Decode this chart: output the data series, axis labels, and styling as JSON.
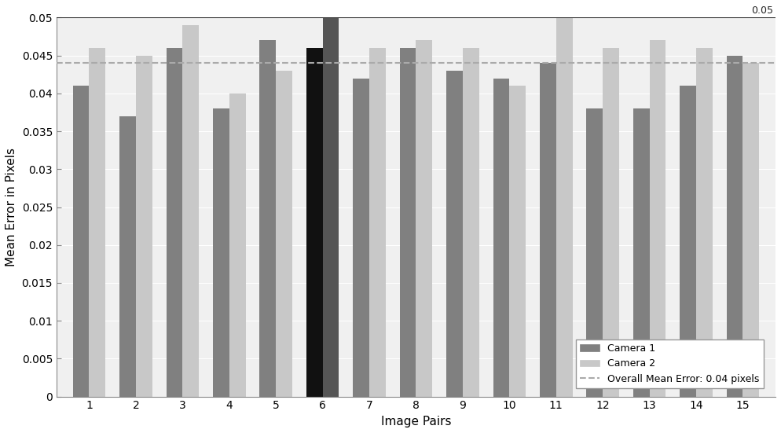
{
  "camera1": [
    0.041,
    0.037,
    0.046,
    0.038,
    0.047,
    0.046,
    0.042,
    0.046,
    0.043,
    0.042,
    0.044,
    0.038,
    0.038,
    0.041,
    0.045
  ],
  "camera2": [
    0.046,
    0.045,
    0.049,
    0.04,
    0.043,
    0.05,
    0.046,
    0.047,
    0.046,
    0.041,
    0.05,
    0.046,
    0.047,
    0.046,
    0.044
  ],
  "image_pairs": [
    1,
    2,
    3,
    4,
    5,
    6,
    7,
    8,
    9,
    10,
    11,
    12,
    13,
    14,
    15
  ],
  "overall_mean": 0.044,
  "ylim": [
    0,
    0.05
  ],
  "ylabel": "Mean Error in Pixels",
  "xlabel": "Image Pairs",
  "color_camera1": "#808080",
  "color_camera2": "#c8c8c8",
  "color_camera1_dark": "#111111",
  "color_camera2_dark": "#555555",
  "dashed_color": "#aaaaaa",
  "top_line_label": "0.05",
  "legend_camera1": "Camera 1",
  "legend_camera2": "Camera 2",
  "legend_mean": "Overall Mean Error: 0.04 pixels",
  "bar_width": 0.35,
  "fig_width": 9.94,
  "fig_height": 5.51,
  "highlight_pair": 6,
  "bg_color": "#f0f0f0",
  "grid_color": "#ffffff"
}
